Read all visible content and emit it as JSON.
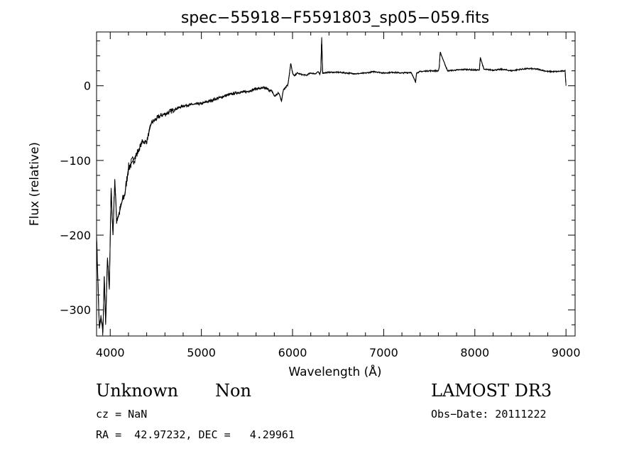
{
  "chart_data": {
    "type": "line",
    "title": "spec−55918−F5591803_sp05−059.fits",
    "xlabel": "Wavelength (Å)",
    "ylabel": "Flux (relative)",
    "xlim": [
      3850,
      9100
    ],
    "ylim": [
      -335,
      72
    ],
    "x_ticks": [
      4000,
      5000,
      6000,
      7000,
      8000,
      9000
    ],
    "x_tick_labels": [
      "4000",
      "5000",
      "6000",
      "7000",
      "8000",
      "9000"
    ],
    "y_ticks": [
      -300,
      -200,
      -100,
      0
    ],
    "y_tick_labels": [
      "−300",
      "−200",
      "−100",
      "0"
    ],
    "grid": false,
    "series": [
      {
        "x": [
          3850,
          3880,
          3900,
          3920,
          3935,
          3950,
          3970,
          3990,
          4010,
          4030,
          4050,
          4070,
          4100,
          4130,
          4160,
          4200,
          4250,
          4300,
          4350,
          4400,
          4450,
          4500,
          4550,
          4600,
          4700,
          4800,
          4900,
          5000,
          5100,
          5200,
          5300,
          5400,
          5500,
          5600,
          5700,
          5780,
          5800,
          5850,
          5880,
          5900,
          5950,
          5980,
          6000,
          6020,
          6050,
          6100,
          6150,
          6200,
          6250,
          6280,
          6300,
          6310,
          6320,
          6330,
          6400,
          6500,
          6600,
          6700,
          6800,
          6900,
          7000,
          7100,
          7200,
          7300,
          7350,
          7360,
          7400,
          7500,
          7600,
          7610,
          7620,
          7700,
          7800,
          7900,
          8000,
          8050,
          8060,
          8100,
          8200,
          8300,
          8400,
          8500,
          8600,
          8700,
          8800,
          8900,
          8990,
          9000
        ],
        "y": [
          -200,
          -325,
          -310,
          -330,
          -255,
          -320,
          -230,
          -270,
          -140,
          -200,
          -125,
          -180,
          -170,
          -155,
          -145,
          -110,
          -100,
          -90,
          -75,
          -75,
          -50,
          -45,
          -40,
          -38,
          -32,
          -27,
          -25,
          -24,
          -20,
          -16,
          -12,
          -9,
          -8,
          -4,
          -3,
          -8,
          -14,
          -10,
          -20,
          -5,
          2,
          30,
          17,
          13,
          17,
          15,
          14,
          17,
          16,
          19,
          15,
          20,
          65,
          17,
          18,
          18,
          17,
          16,
          17,
          19,
          17,
          18,
          17,
          18,
          5,
          17,
          19,
          20,
          20,
          25,
          45,
          20,
          21,
          22,
          21,
          21,
          38,
          22,
          21,
          22,
          20,
          22,
          23,
          22,
          19,
          19,
          20,
          0
        ]
      }
    ]
  },
  "footer": {
    "object_class": "Unknown",
    "object_subclass": "Non",
    "redshift": "cz = NaN",
    "coords": "RA =  42.97232, DEC =   4.29961",
    "survey": "LAMOST DR3",
    "obs_date": "Obs−Date: 20111222"
  }
}
